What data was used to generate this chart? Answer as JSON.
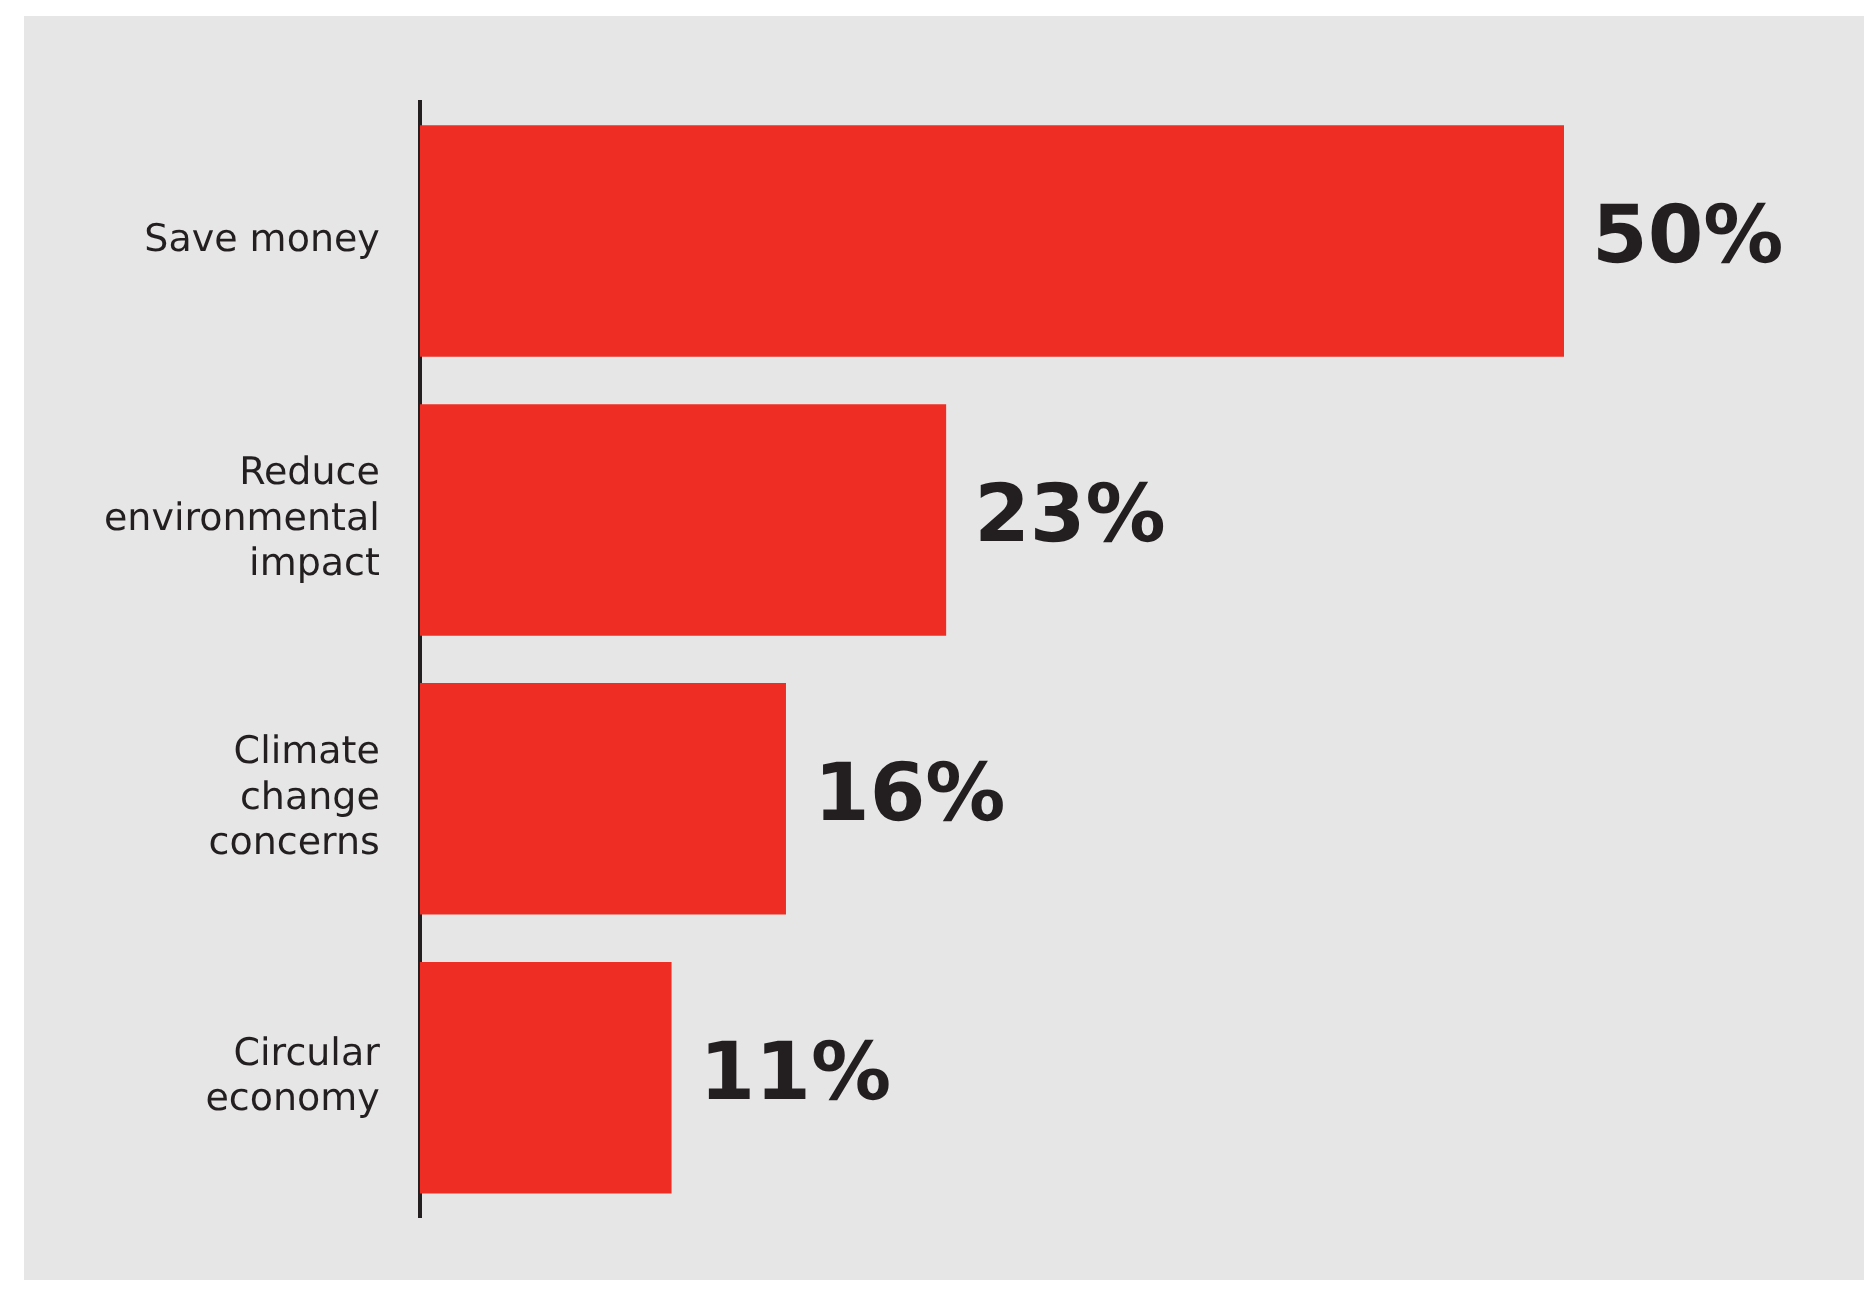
{
  "chart_data": {
    "type": "bar",
    "orientation": "horizontal",
    "categories": [
      "Save money",
      "Reduce environmental impact",
      "Climate change concerns",
      "Circular economy"
    ],
    "values": [
      50,
      23,
      16,
      11
    ],
    "value_labels": [
      "50%",
      "23%",
      "16%",
      "11%"
    ],
    "color": "#ee2e24",
    "legend": false
  }
}
